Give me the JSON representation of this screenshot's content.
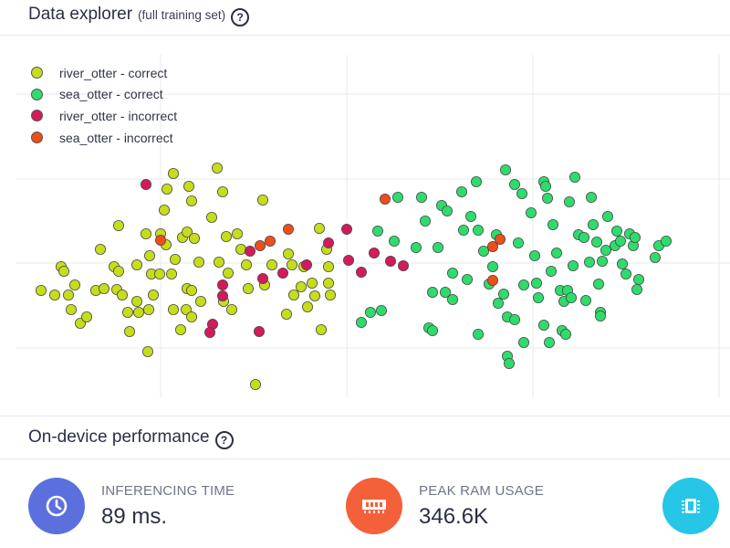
{
  "header": {
    "title": "Data explorer",
    "subtitle": "(full training set)",
    "help": "?"
  },
  "legend": [
    {
      "label": "river_otter - correct",
      "color": "#c6dd1a"
    },
    {
      "label": "sea_otter - correct",
      "color": "#2edc6c"
    },
    {
      "label": "river_otter - incorrect",
      "color": "#d21a5c"
    },
    {
      "label": "sea_otter - incorrect",
      "color": "#ef4d19"
    }
  ],
  "performance": {
    "title": "On-device performance",
    "help": "?",
    "inferencing": {
      "label": "INFERENCING TIME",
      "value": "89 ms.",
      "color": "#5b6fdd",
      "icon": "clock-icon"
    },
    "ram": {
      "label": "PEAK RAM USAGE",
      "value": "346.6K",
      "color": "#f4603a",
      "icon": "memory-icon"
    },
    "flash": {
      "color": "#26c6e6",
      "icon": "chip-icon"
    }
  },
  "chart_data": {
    "type": "scatter",
    "grid": true,
    "legend_position": "top-left",
    "series": [
      {
        "name": "river_otter - correct",
        "color": "#c6dd1a",
        "points": [
          [
            45,
            318
          ],
          [
            60,
            323
          ],
          [
            67,
            292
          ],
          [
            70,
            297
          ],
          [
            75,
            323
          ],
          [
            78,
            339
          ],
          [
            82,
            312
          ],
          [
            88,
            354
          ],
          [
            95,
            347
          ],
          [
            105,
            318
          ],
          [
            110,
            273
          ],
          [
            114,
            316
          ],
          [
            125,
            292
          ],
          [
            130,
            297
          ],
          [
            130,
            247
          ],
          [
            128,
            317
          ],
          [
            134,
            323
          ],
          [
            140,
            342
          ],
          [
            142,
            363
          ],
          [
            150,
            330
          ],
          [
            152,
            342
          ],
          [
            150,
            290
          ],
          [
            160,
            256
          ],
          [
            163,
            339
          ],
          [
            164,
            280
          ],
          [
            162,
            385
          ],
          [
            166,
            300
          ],
          [
            168,
            323
          ],
          [
            175,
            300
          ],
          [
            180,
            230
          ],
          [
            183,
            207
          ],
          [
            176,
            256
          ],
          [
            182,
            268
          ],
          [
            188,
            300
          ],
          [
            190,
            190
          ],
          [
            190,
            339
          ],
          [
            192,
            284
          ],
          [
            198,
            361
          ],
          [
            200,
            260
          ],
          [
            205,
            316
          ],
          [
            207,
            204
          ],
          [
            205,
            254
          ],
          [
            210,
            220
          ],
          [
            210,
            318
          ],
          [
            204,
            339
          ],
          [
            210,
            347
          ],
          [
            213,
            261
          ],
          [
            218,
            287
          ],
          [
            220,
            330
          ],
          [
            232,
            238
          ],
          [
            238,
            184
          ],
          [
            240,
            287
          ],
          [
            244,
            210
          ],
          [
            248,
            259
          ],
          [
            245,
            330
          ],
          [
            250,
            299
          ],
          [
            254,
            339
          ],
          [
            260,
            256
          ],
          [
            264,
            273
          ],
          [
            270,
            290
          ],
          [
            272,
            316
          ],
          [
            288,
            219
          ],
          [
            290,
            312
          ],
          [
            298,
            290
          ],
          [
            314,
            344
          ],
          [
            316,
            278
          ],
          [
            320,
            290
          ],
          [
            322,
            323
          ],
          [
            333,
            292
          ],
          [
            330,
            314
          ],
          [
            337,
            336
          ],
          [
            342,
            310
          ],
          [
            345,
            324
          ],
          [
            350,
            250
          ],
          [
            352,
            361
          ],
          [
            358,
            273
          ],
          [
            360,
            292
          ],
          [
            360,
            310
          ],
          [
            362,
            323
          ],
          [
            280,
            421
          ]
        ]
      },
      {
        "name": "sea_otter - correct",
        "color": "#2edc6c",
        "points": [
          [
            396,
            353
          ],
          [
            406,
            342
          ],
          [
            414,
            253
          ],
          [
            418,
            340
          ],
          [
            436,
            216
          ],
          [
            432,
            264
          ],
          [
            456,
            271
          ],
          [
            462,
            216
          ],
          [
            466,
            242
          ],
          [
            470,
            359
          ],
          [
            474,
            320
          ],
          [
            474,
            362
          ],
          [
            480,
            271
          ],
          [
            484,
            225
          ],
          [
            488,
            320
          ],
          [
            490,
            231
          ],
          [
            496,
            299
          ],
          [
            496,
            328
          ],
          [
            506,
            210
          ],
          [
            508,
            252
          ],
          [
            512,
            306
          ],
          [
            516,
            237
          ],
          [
            522,
            199
          ],
          [
            524,
            252
          ],
          [
            524,
            366
          ],
          [
            530,
            275
          ],
          [
            536,
            311
          ],
          [
            540,
            292
          ],
          [
            544,
            257
          ],
          [
            546,
            332
          ],
          [
            552,
            322
          ],
          [
            554,
            186
          ],
          [
            556,
            347
          ],
          [
            556,
            390
          ],
          [
            558,
            398
          ],
          [
            564,
            350
          ],
          [
            564,
            202
          ],
          [
            568,
            266
          ],
          [
            572,
            212
          ],
          [
            574,
            375
          ],
          [
            574,
            312
          ],
          [
            582,
            233
          ],
          [
            586,
            280
          ],
          [
            588,
            310
          ],
          [
            590,
            326
          ],
          [
            596,
            199
          ],
          [
            598,
            204
          ],
          [
            600,
            217
          ],
          [
            596,
            356
          ],
          [
            602,
            375
          ],
          [
            604,
            297
          ],
          [
            606,
            246
          ],
          [
            610,
            277
          ],
          [
            614,
            318
          ],
          [
            616,
            362
          ],
          [
            618,
            330
          ],
          [
            622,
            318
          ],
          [
            620,
            366
          ],
          [
            624,
            221
          ],
          [
            626,
            326
          ],
          [
            628,
            291
          ],
          [
            630,
            194
          ],
          [
            634,
            257
          ],
          [
            640,
            260
          ],
          [
            642,
            329
          ],
          [
            646,
            287
          ],
          [
            648,
            216
          ],
          [
            650,
            246
          ],
          [
            654,
            265
          ],
          [
            656,
            311
          ],
          [
            658,
            342
          ],
          [
            658,
            346
          ],
          [
            660,
            286
          ],
          [
            664,
            274
          ],
          [
            666,
            237
          ],
          [
            674,
            269
          ],
          [
            676,
            253
          ],
          [
            680,
            264
          ],
          [
            682,
            289
          ],
          [
            686,
            300
          ],
          [
            690,
            256
          ],
          [
            694,
            269
          ],
          [
            698,
            317
          ],
          [
            700,
            306
          ],
          [
            718,
            282
          ],
          [
            722,
            269
          ],
          [
            730,
            264
          ],
          [
            696,
            260
          ]
        ]
      },
      {
        "name": "river_otter - incorrect",
        "color": "#d21a5c",
        "points": [
          [
            160,
            202
          ],
          [
            233,
            355
          ],
          [
            230,
            364
          ],
          [
            244,
            312
          ],
          [
            244,
            324
          ],
          [
            274,
            275
          ],
          [
            284,
            363
          ],
          [
            288,
            305
          ],
          [
            310,
            299
          ],
          [
            336,
            290
          ],
          [
            360,
            266
          ],
          [
            380,
            251
          ],
          [
            382,
            285
          ],
          [
            396,
            298
          ],
          [
            410,
            277
          ],
          [
            428,
            286
          ],
          [
            442,
            291
          ]
        ]
      },
      {
        "name": "sea_otter - incorrect",
        "color": "#ef4d19",
        "points": [
          [
            176,
            263
          ],
          [
            285,
            269
          ],
          [
            296,
            264
          ],
          [
            316,
            251
          ],
          [
            422,
            218
          ],
          [
            540,
            270
          ],
          [
            548,
            262
          ],
          [
            540,
            307
          ]
        ]
      }
    ]
  }
}
